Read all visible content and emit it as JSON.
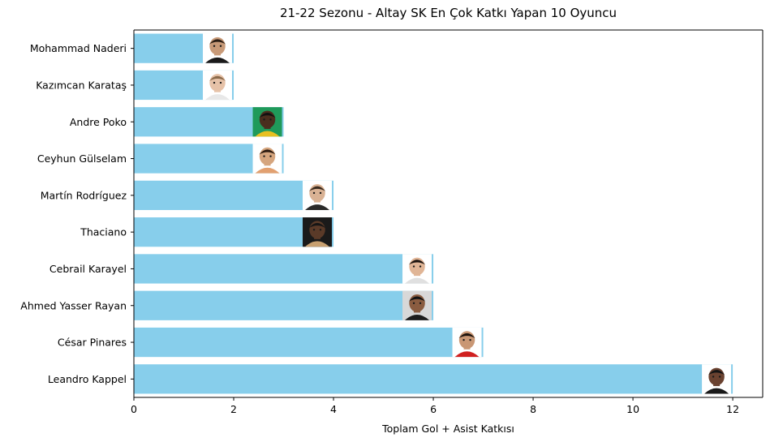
{
  "chart_data": {
    "type": "bar",
    "orientation": "horizontal",
    "title": "21-22 Sezonu - Altay SK En Çok Katkı Yapan 10 Oyuncu",
    "xlabel": "Toplam Gol + Asist Katkısı",
    "ylabel": "",
    "categories": [
      "Mohammad Naderi",
      "Kazımcan Karataş",
      "Andre Poko",
      "Ceyhun Gülselam",
      "Martín Rodríguez",
      "Thaciano",
      "Cebrail Karayel",
      "Ahmed Yasser Rayan",
      "César Pinares",
      "Leandro Kappel"
    ],
    "values": [
      2,
      2,
      3,
      3,
      4,
      4,
      6,
      6,
      7,
      12
    ],
    "xlim": [
      0,
      12.6
    ],
    "xticks": [
      "0",
      "2",
      "4",
      "6",
      "8",
      "10",
      "12"
    ],
    "bar_color": "#87ceeb",
    "grid": false,
    "player_photo_colors": {
      "Mohammad Naderi": {
        "skin": "#c89a78",
        "hair": "#2a1d14",
        "bg": "#ffffff",
        "shirt": "#1a1a1a"
      },
      "Kazımcan Karataş": {
        "skin": "#e6c2a8",
        "hair": "#8a6a4a",
        "bg": "#ffffff",
        "shirt": "#e8e8e8"
      },
      "Andre Poko": {
        "skin": "#4a2e1e",
        "hair": "#111111",
        "bg": "#1f9a5a",
        "shirt": "#e8c020"
      },
      "Ceyhun Gülselam": {
        "skin": "#d5a57e",
        "hair": "#2b1a10",
        "bg": "#ffffff",
        "shirt": "#e2a070"
      },
      "Martín Rodríguez": {
        "skin": "#d9b294",
        "hair": "#3a2b1e",
        "bg": "#ffffff",
        "shirt": "#2a2a2a"
      },
      "Thaciano": {
        "skin": "#5a3a28",
        "hair": "#151515",
        "bg": "#1a1a1a",
        "shirt": "#c8a070"
      },
      "Cebrail Karayel": {
        "skin": "#e0b596",
        "hair": "#1d1410",
        "bg": "#ffffff",
        "shirt": "#e0e0e0"
      },
      "Ahmed Yasser Rayan": {
        "skin": "#8a5c40",
        "hair": "#121212",
        "bg": "#d8d8d8",
        "shirt": "#1c1c1c"
      },
      "César Pinares": {
        "skin": "#c99774",
        "hair": "#1e140e",
        "bg": "#ffffff",
        "shirt": "#d02020"
      },
      "Leandro Kappel": {
        "skin": "#6a4230",
        "hair": "#141414",
        "bg": "#ffffff",
        "shirt": "#1a1a1a"
      }
    }
  }
}
